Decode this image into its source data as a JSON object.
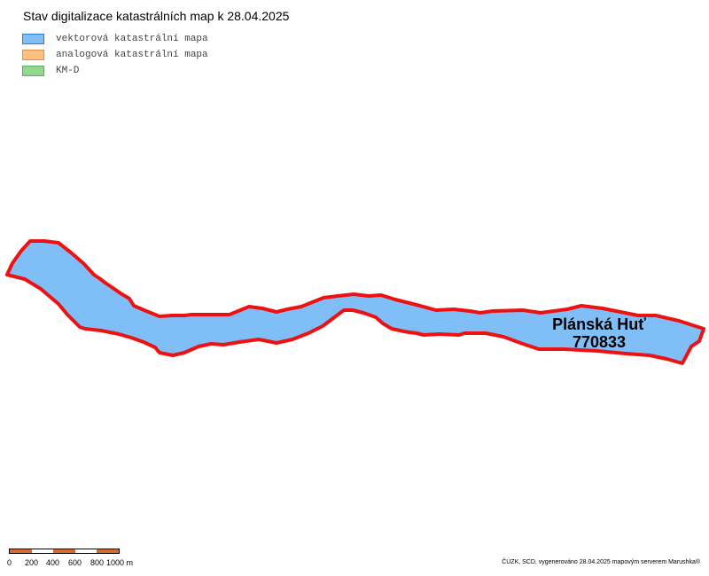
{
  "title": "Stav digitalizace katastrálních map k 28.04.2025",
  "legend": {
    "items": [
      {
        "label": "vektorová katastrální mapa",
        "fill": "#80bef8",
        "stroke": "#2b7fd6"
      },
      {
        "label": "analogová katastrální mapa",
        "fill": "#ffc080",
        "stroke": "#e0904a"
      },
      {
        "label": "KM-D",
        "fill": "#90d890",
        "stroke": "#5fb05f"
      }
    ]
  },
  "map": {
    "parcel": {
      "name": "Plánská Huť",
      "code": "770833",
      "fill": "#80bef8",
      "outline": "#ee1111",
      "category": "vektorová katastrální mapa"
    }
  },
  "scale": {
    "labels": [
      "0",
      "200",
      "400",
      "600",
      "800",
      "1000 m"
    ],
    "dark_color": "#d56e2c"
  },
  "credits": "ČÚZK, SCD, vygenerováno 28.04.2025 mapovým serverem Marushka®"
}
